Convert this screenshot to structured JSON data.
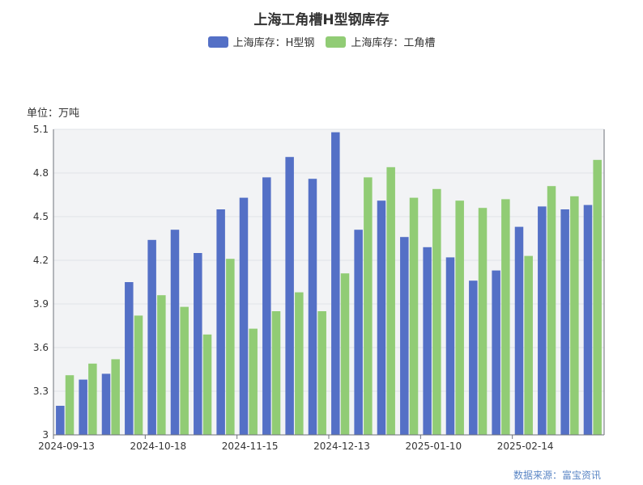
{
  "title": "上海工角槽H型钢库存",
  "unit_label": "单位：万吨",
  "source_label": "数据来源：富宝资讯",
  "colors": {
    "series_h": "#5470c6",
    "series_gjc": "#91cc75",
    "plot_bg": "#f2f3f5",
    "grid": "#e0e3e8"
  },
  "chart_data": {
    "type": "bar",
    "title": "上海工角槽H型钢库存",
    "ylabel": "单位：万吨",
    "ylim": [
      3,
      5.1
    ],
    "yticks": [
      3,
      3.3,
      3.6,
      3.9,
      4.2,
      4.5,
      4.8,
      5.1
    ],
    "ytick_labels": [
      "3",
      "3.3",
      "3.6",
      "3.9",
      "4.2",
      "4.5",
      "4.8",
      "5.1"
    ],
    "xtick_labels": [
      "2024-09-13",
      "2024-10-18",
      "2024-11-15",
      "2024-12-13",
      "2025-01-10",
      "2025-02-14"
    ],
    "xtick_indices": [
      0,
      4,
      8,
      12,
      16,
      20
    ],
    "grid": true,
    "legend_position": "top",
    "n_categories": 24,
    "series": [
      {
        "name": "上海库存：H型钢",
        "values": [
          3.2,
          3.38,
          3.42,
          4.05,
          4.34,
          4.41,
          4.25,
          4.55,
          4.63,
          4.77,
          4.91,
          4.76,
          5.08,
          4.41,
          4.61,
          4.36,
          4.29,
          4.22,
          4.06,
          4.13,
          4.43,
          4.57,
          4.55,
          4.58
        ]
      },
      {
        "name": "上海库存：工角槽",
        "values": [
          3.41,
          3.49,
          3.52,
          3.82,
          3.96,
          3.88,
          3.69,
          4.21,
          3.73,
          3.85,
          3.98,
          3.85,
          4.11,
          4.77,
          4.84,
          4.63,
          4.69,
          4.61,
          4.56,
          4.62,
          4.23,
          4.71,
          4.64,
          4.89
        ]
      }
    ]
  }
}
